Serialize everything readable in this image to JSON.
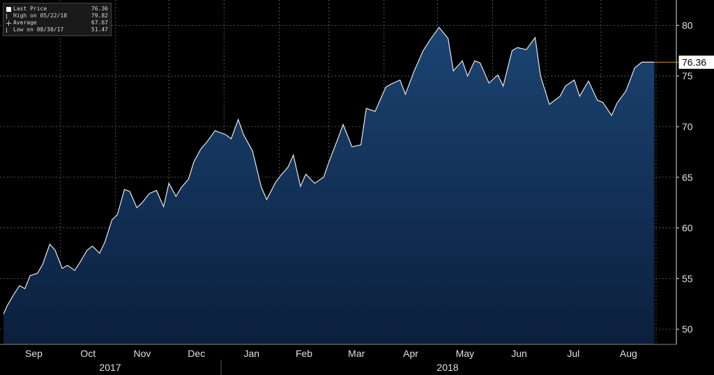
{
  "legend": {
    "items": [
      {
        "label": "Last Price",
        "value": "76.36",
        "icon": "square-icon"
      },
      {
        "label": "High on 05/22/18",
        "value": "79.82",
        "icon": "tick-icon"
      },
      {
        "label": "Average",
        "value": "67.67",
        "icon": "plus-icon"
      },
      {
        "label": "Low on 08/30/17",
        "value": "51.47",
        "icon": "tick-icon"
      }
    ]
  },
  "chart_data": {
    "type": "area",
    "title": "",
    "xlabel": "",
    "ylabel": "",
    "ylim": [
      48.5,
      82.5
    ],
    "yticks": [
      50,
      55,
      60,
      65,
      70,
      75,
      80
    ],
    "grid": true,
    "last_price_label": "76.36",
    "colors": {
      "background": "#000000",
      "area_top": "#1b4472",
      "area_bottom": "#0b1f3d",
      "line": "#e8e8e8",
      "grid": "#6a6a6a",
      "last_price_line": "#d08a28",
      "text": "#e0e0e0"
    },
    "month_labels": [
      "Sep",
      "Oct",
      "Nov",
      "Dec",
      "Jan",
      "Feb",
      "Mar",
      "Apr",
      "May",
      "Jun",
      "Jul",
      "Aug"
    ],
    "year_labels": [
      "2017",
      "2018"
    ],
    "series": [
      {
        "x": [
          "2017-08-30",
          "2017-09-01",
          "2017-09-05",
          "2017-09-08",
          "2017-09-11",
          "2017-09-14",
          "2017-09-18",
          "2017-09-21",
          "2017-09-25",
          "2017-09-28",
          "2017-10-02",
          "2017-10-05",
          "2017-10-09",
          "2017-10-12",
          "2017-10-16",
          "2017-10-19",
          "2017-10-23",
          "2017-10-26",
          "2017-10-30",
          "2017-11-02",
          "2017-11-06",
          "2017-11-09",
          "2017-11-13",
          "2017-11-16",
          "2017-11-20",
          "2017-11-24",
          "2017-11-28",
          "2017-12-01",
          "2017-12-05",
          "2017-12-08",
          "2017-12-12",
          "2017-12-15",
          "2017-12-19",
          "2017-12-22",
          "2017-12-27",
          "2018-01-02",
          "2018-01-05",
          "2018-01-09",
          "2018-01-12",
          "2018-01-17",
          "2018-01-22",
          "2018-01-25",
          "2018-01-30",
          "2018-02-02",
          "2018-02-06",
          "2018-02-09",
          "2018-02-13",
          "2018-02-16",
          "2018-02-21",
          "2018-02-26",
          "2018-03-01",
          "2018-03-06",
          "2018-03-09",
          "2018-03-14",
          "2018-03-19",
          "2018-03-22",
          "2018-03-27",
          "2018-04-02",
          "2018-04-05",
          "2018-04-10",
          "2018-04-13",
          "2018-04-18",
          "2018-04-23",
          "2018-04-27",
          "2018-05-02",
          "2018-05-07",
          "2018-05-10",
          "2018-05-15",
          "2018-05-18",
          "2018-05-22",
          "2018-05-25",
          "2018-05-30",
          "2018-06-04",
          "2018-06-07",
          "2018-06-12",
          "2018-06-15",
          "2018-06-20",
          "2018-06-25",
          "2018-06-28",
          "2018-07-03",
          "2018-07-09",
          "2018-07-12",
          "2018-07-17",
          "2018-07-20",
          "2018-07-25",
          "2018-07-30",
          "2018-08-02",
          "2018-08-07",
          "2018-08-10",
          "2018-08-15",
          "2018-08-20",
          "2018-08-24",
          "2018-08-28",
          "2018-08-31"
        ],
        "y": [
          51.5,
          52.3,
          53.5,
          54.3,
          54.0,
          55.3,
          55.5,
          56.4,
          58.4,
          57.8,
          56.0,
          56.3,
          55.8,
          56.6,
          57.8,
          58.2,
          57.5,
          58.6,
          60.8,
          61.3,
          63.8,
          63.6,
          62.0,
          62.5,
          63.4,
          63.7,
          62.1,
          64.4,
          63.1,
          64.0,
          64.8,
          66.5,
          67.8,
          68.4,
          69.6,
          69.2,
          68.8,
          70.7,
          69.2,
          67.6,
          64.0,
          62.8,
          64.5,
          65.2,
          66.0,
          67.2,
          64.1,
          65.3,
          64.4,
          65.0,
          66.5,
          68.8,
          70.2,
          68.0,
          68.2,
          71.8,
          71.5,
          73.9,
          74.2,
          74.6,
          73.2,
          75.5,
          77.5,
          78.6,
          79.8,
          78.7,
          75.5,
          76.5,
          75.0,
          76.5,
          76.3,
          74.3,
          75.1,
          74.0,
          77.5,
          77.8,
          77.6,
          78.8,
          75.0,
          72.2,
          73.0,
          74.0,
          74.6,
          73.0,
          74.5,
          72.6,
          72.4,
          71.1,
          72.3,
          73.5,
          75.8,
          76.36,
          76.36,
          76.36
        ]
      }
    ]
  }
}
